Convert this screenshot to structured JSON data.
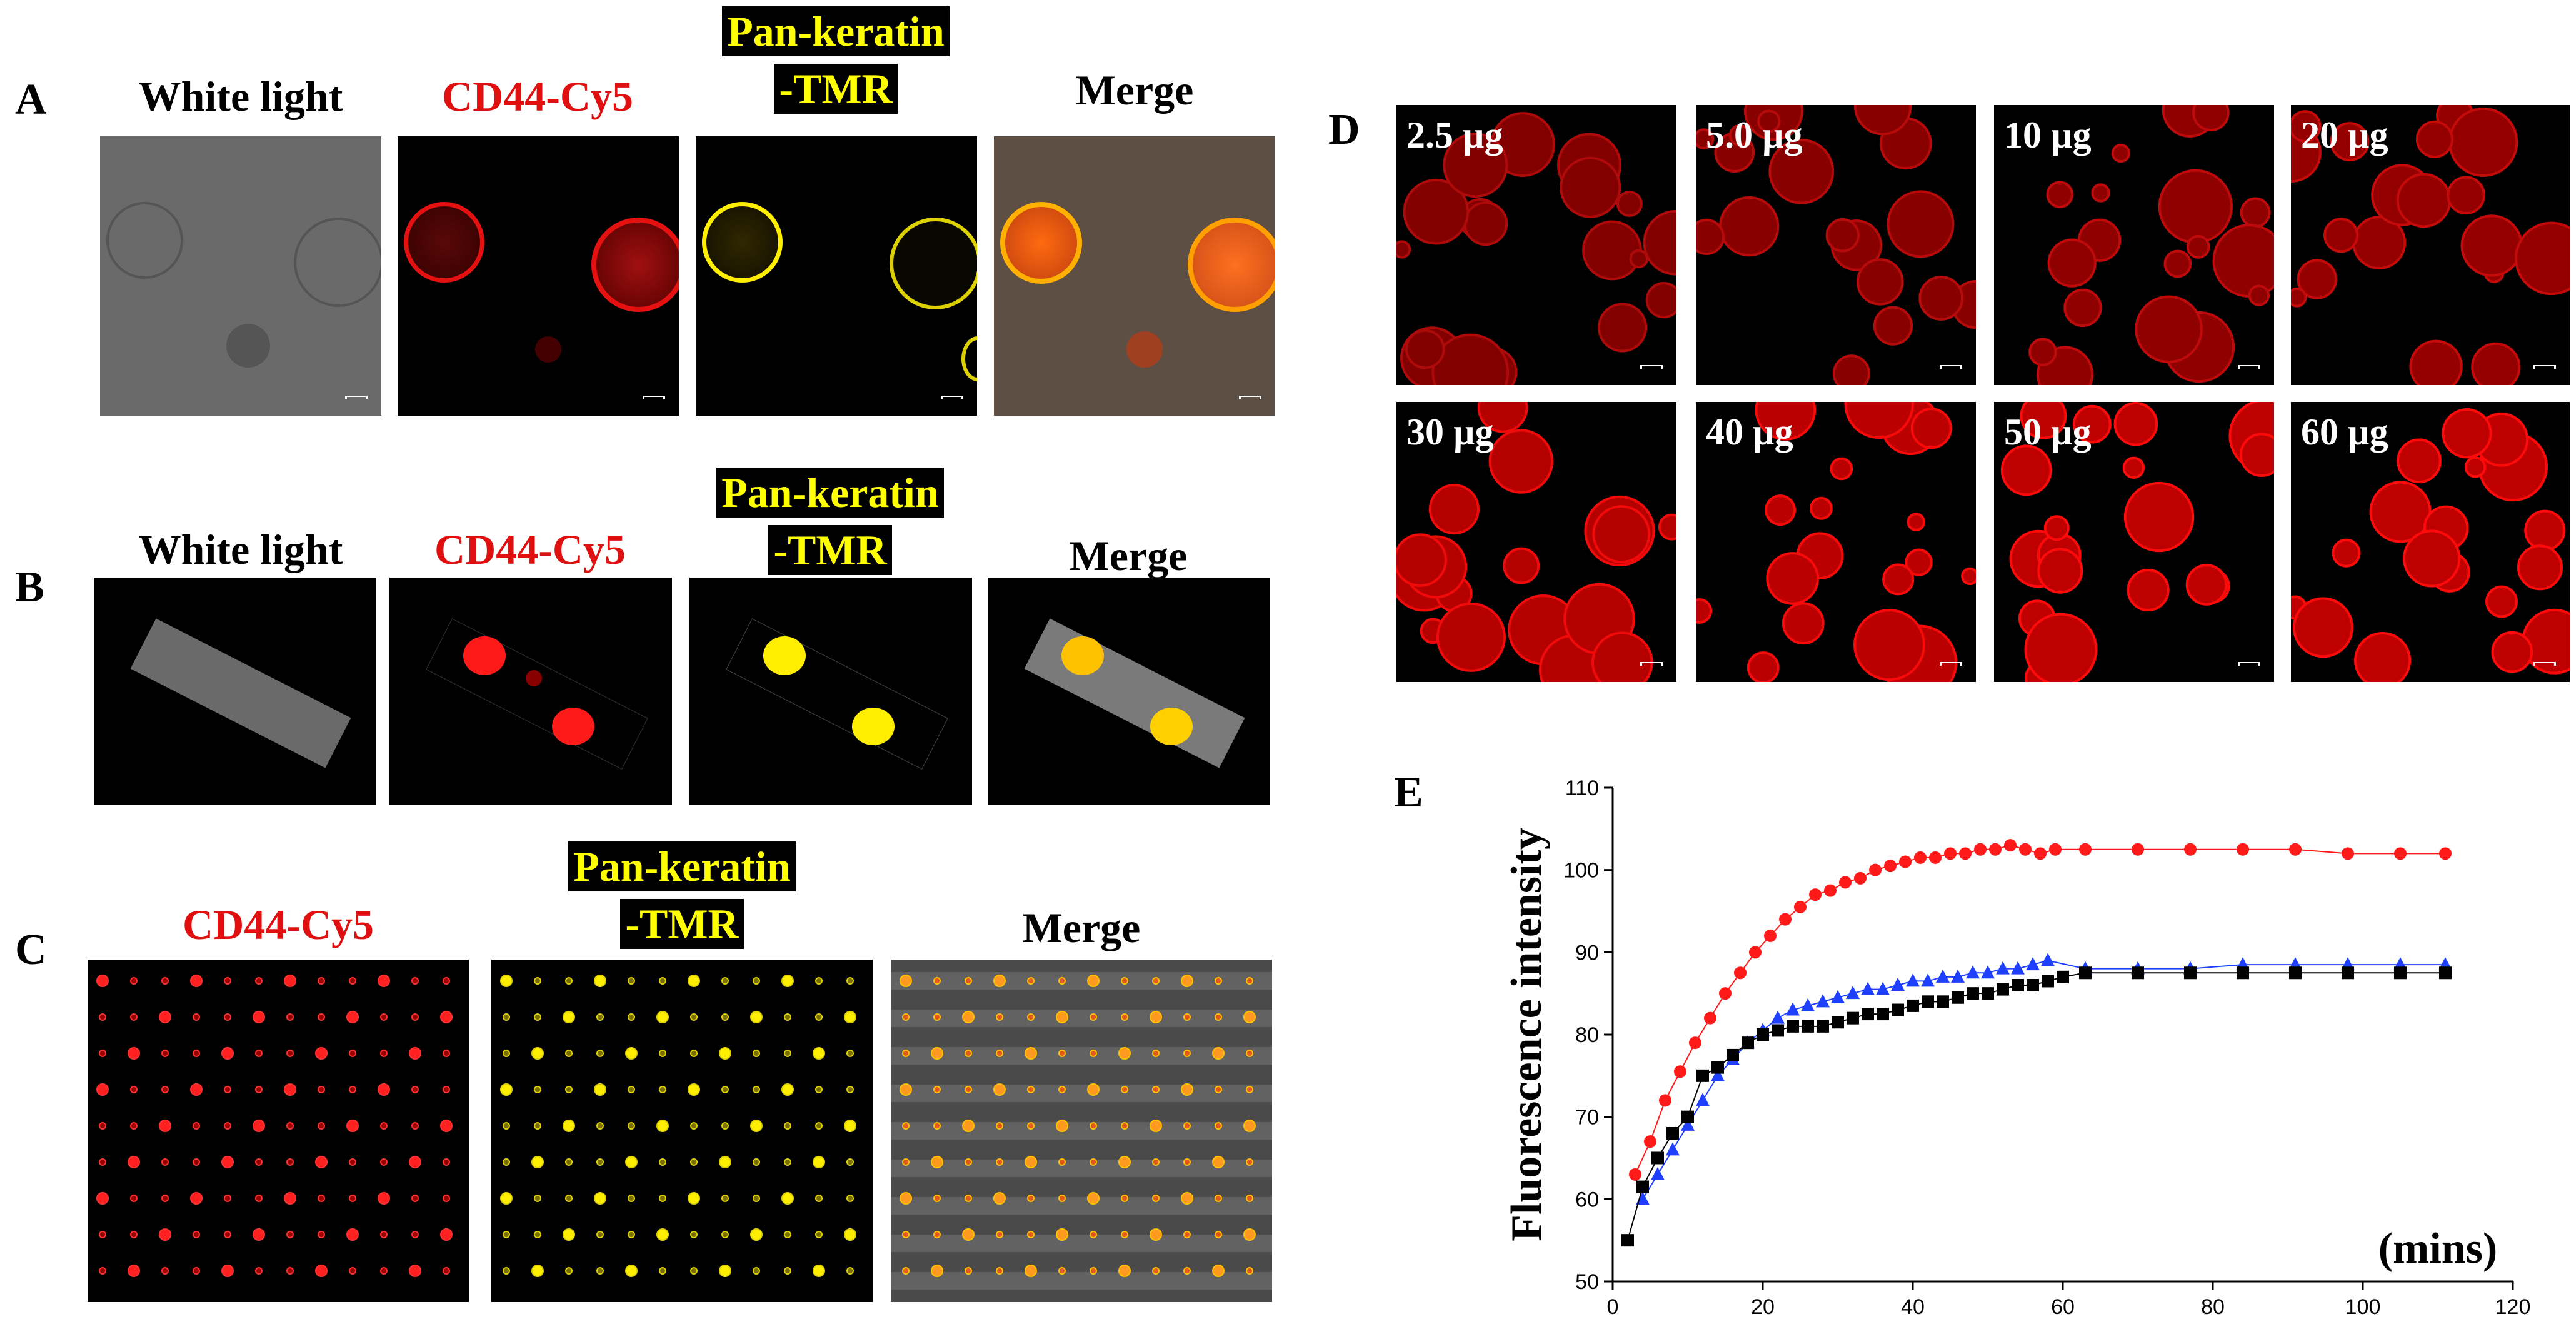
{
  "panel_labels": {
    "A": "A",
    "B": "B",
    "C": "C",
    "D": "D",
    "E": "E"
  },
  "row_a": {
    "white_light": "White light",
    "cd44": "CD44-Cy5",
    "pan_line1": "Pan-keratin",
    "pan_line2": "-TMR",
    "merge": "Merge"
  },
  "row_b": {
    "white_light": "White light",
    "cd44": "CD44-Cy5",
    "pan_line1": "Pan-keratin",
    "pan_line2": "-TMR",
    "merge": "Merge"
  },
  "row_c": {
    "cd44": "CD44-Cy5",
    "pan_line1": "Pan-keratin",
    "pan_line2": "-TMR",
    "merge": "Merge"
  },
  "grid_d": [
    "2.5 µg",
    "5.0 µg",
    "10 µg",
    "20 µg",
    "30 µg",
    "40 µg",
    "50 µg",
    "60 µg"
  ],
  "colors": {
    "red_fluor": "#e01010",
    "yellow_fluor": "#ffff00",
    "red_series": "#ff1a1a",
    "blue_series": "#1f3fff",
    "black_series": "#000000"
  },
  "chart_data": {
    "type": "scatter",
    "title": "",
    "ylabel": "Fluorescence intensity",
    "xlabel": "(mins)",
    "xlim": [
      0,
      120
    ],
    "ylim": [
      50,
      110
    ],
    "xticks": [
      0,
      20,
      40,
      60,
      80,
      100,
      120
    ],
    "yticks": [
      50,
      60,
      70,
      80,
      90,
      100,
      110
    ],
    "series": [
      {
        "name": "red",
        "marker": "circle",
        "x": [
          3,
          5,
          7,
          9,
          11,
          13,
          15,
          17,
          19,
          21,
          23,
          25,
          27,
          29,
          31,
          33,
          35,
          37,
          39,
          41,
          43,
          45,
          47,
          49,
          51,
          53,
          55,
          57,
          59,
          63,
          70,
          77,
          84,
          91,
          98,
          105,
          111
        ],
        "y": [
          63,
          67,
          72,
          75.5,
          79,
          82,
          85,
          87.5,
          90,
          92,
          94,
          95.5,
          97,
          97.5,
          98.5,
          99,
          100,
          100.5,
          101,
          101.5,
          101.5,
          102,
          102,
          102.5,
          102.5,
          103,
          102.5,
          102,
          102.5,
          102.5,
          102.5,
          102.5,
          102.5,
          102.5,
          102,
          102,
          102
        ]
      },
      {
        "name": "blue",
        "marker": "triangle",
        "x": [
          4,
          6,
          8,
          10,
          12,
          14,
          16,
          18,
          20,
          22,
          24,
          26,
          28,
          30,
          32,
          34,
          36,
          38,
          40,
          42,
          44,
          46,
          48,
          50,
          52,
          54,
          56,
          58,
          63,
          70,
          77,
          84,
          91,
          98,
          105,
          111
        ],
        "y": [
          60,
          63,
          66,
          69,
          72,
          75,
          77,
          79,
          80.5,
          82,
          83,
          83.5,
          84,
          84.5,
          85,
          85.5,
          85.5,
          86,
          86.5,
          86.5,
          87,
          87,
          87.5,
          87.5,
          88,
          88,
          88.5,
          89,
          88,
          88,
          88,
          88.5,
          88.5,
          88.5,
          88.5,
          88.5
        ]
      },
      {
        "name": "black",
        "marker": "square",
        "x": [
          2,
          4,
          6,
          8,
          10,
          12,
          14,
          16,
          18,
          20,
          22,
          24,
          26,
          28,
          30,
          32,
          34,
          36,
          38,
          40,
          42,
          44,
          46,
          48,
          50,
          52,
          54,
          56,
          58,
          60,
          63,
          70,
          77,
          84,
          91,
          98,
          105,
          111
        ],
        "y": [
          55,
          61.5,
          65,
          68,
          70,
          75,
          76,
          77.5,
          79,
          80,
          80.5,
          81,
          81,
          81,
          81.5,
          82,
          82.5,
          82.5,
          83,
          83.5,
          84,
          84,
          84.5,
          85,
          85,
          85.5,
          86,
          86,
          86.5,
          87,
          87.5,
          87.5,
          87.5,
          87.5,
          87.5,
          87.5,
          87.5,
          87.5
        ]
      }
    ]
  }
}
